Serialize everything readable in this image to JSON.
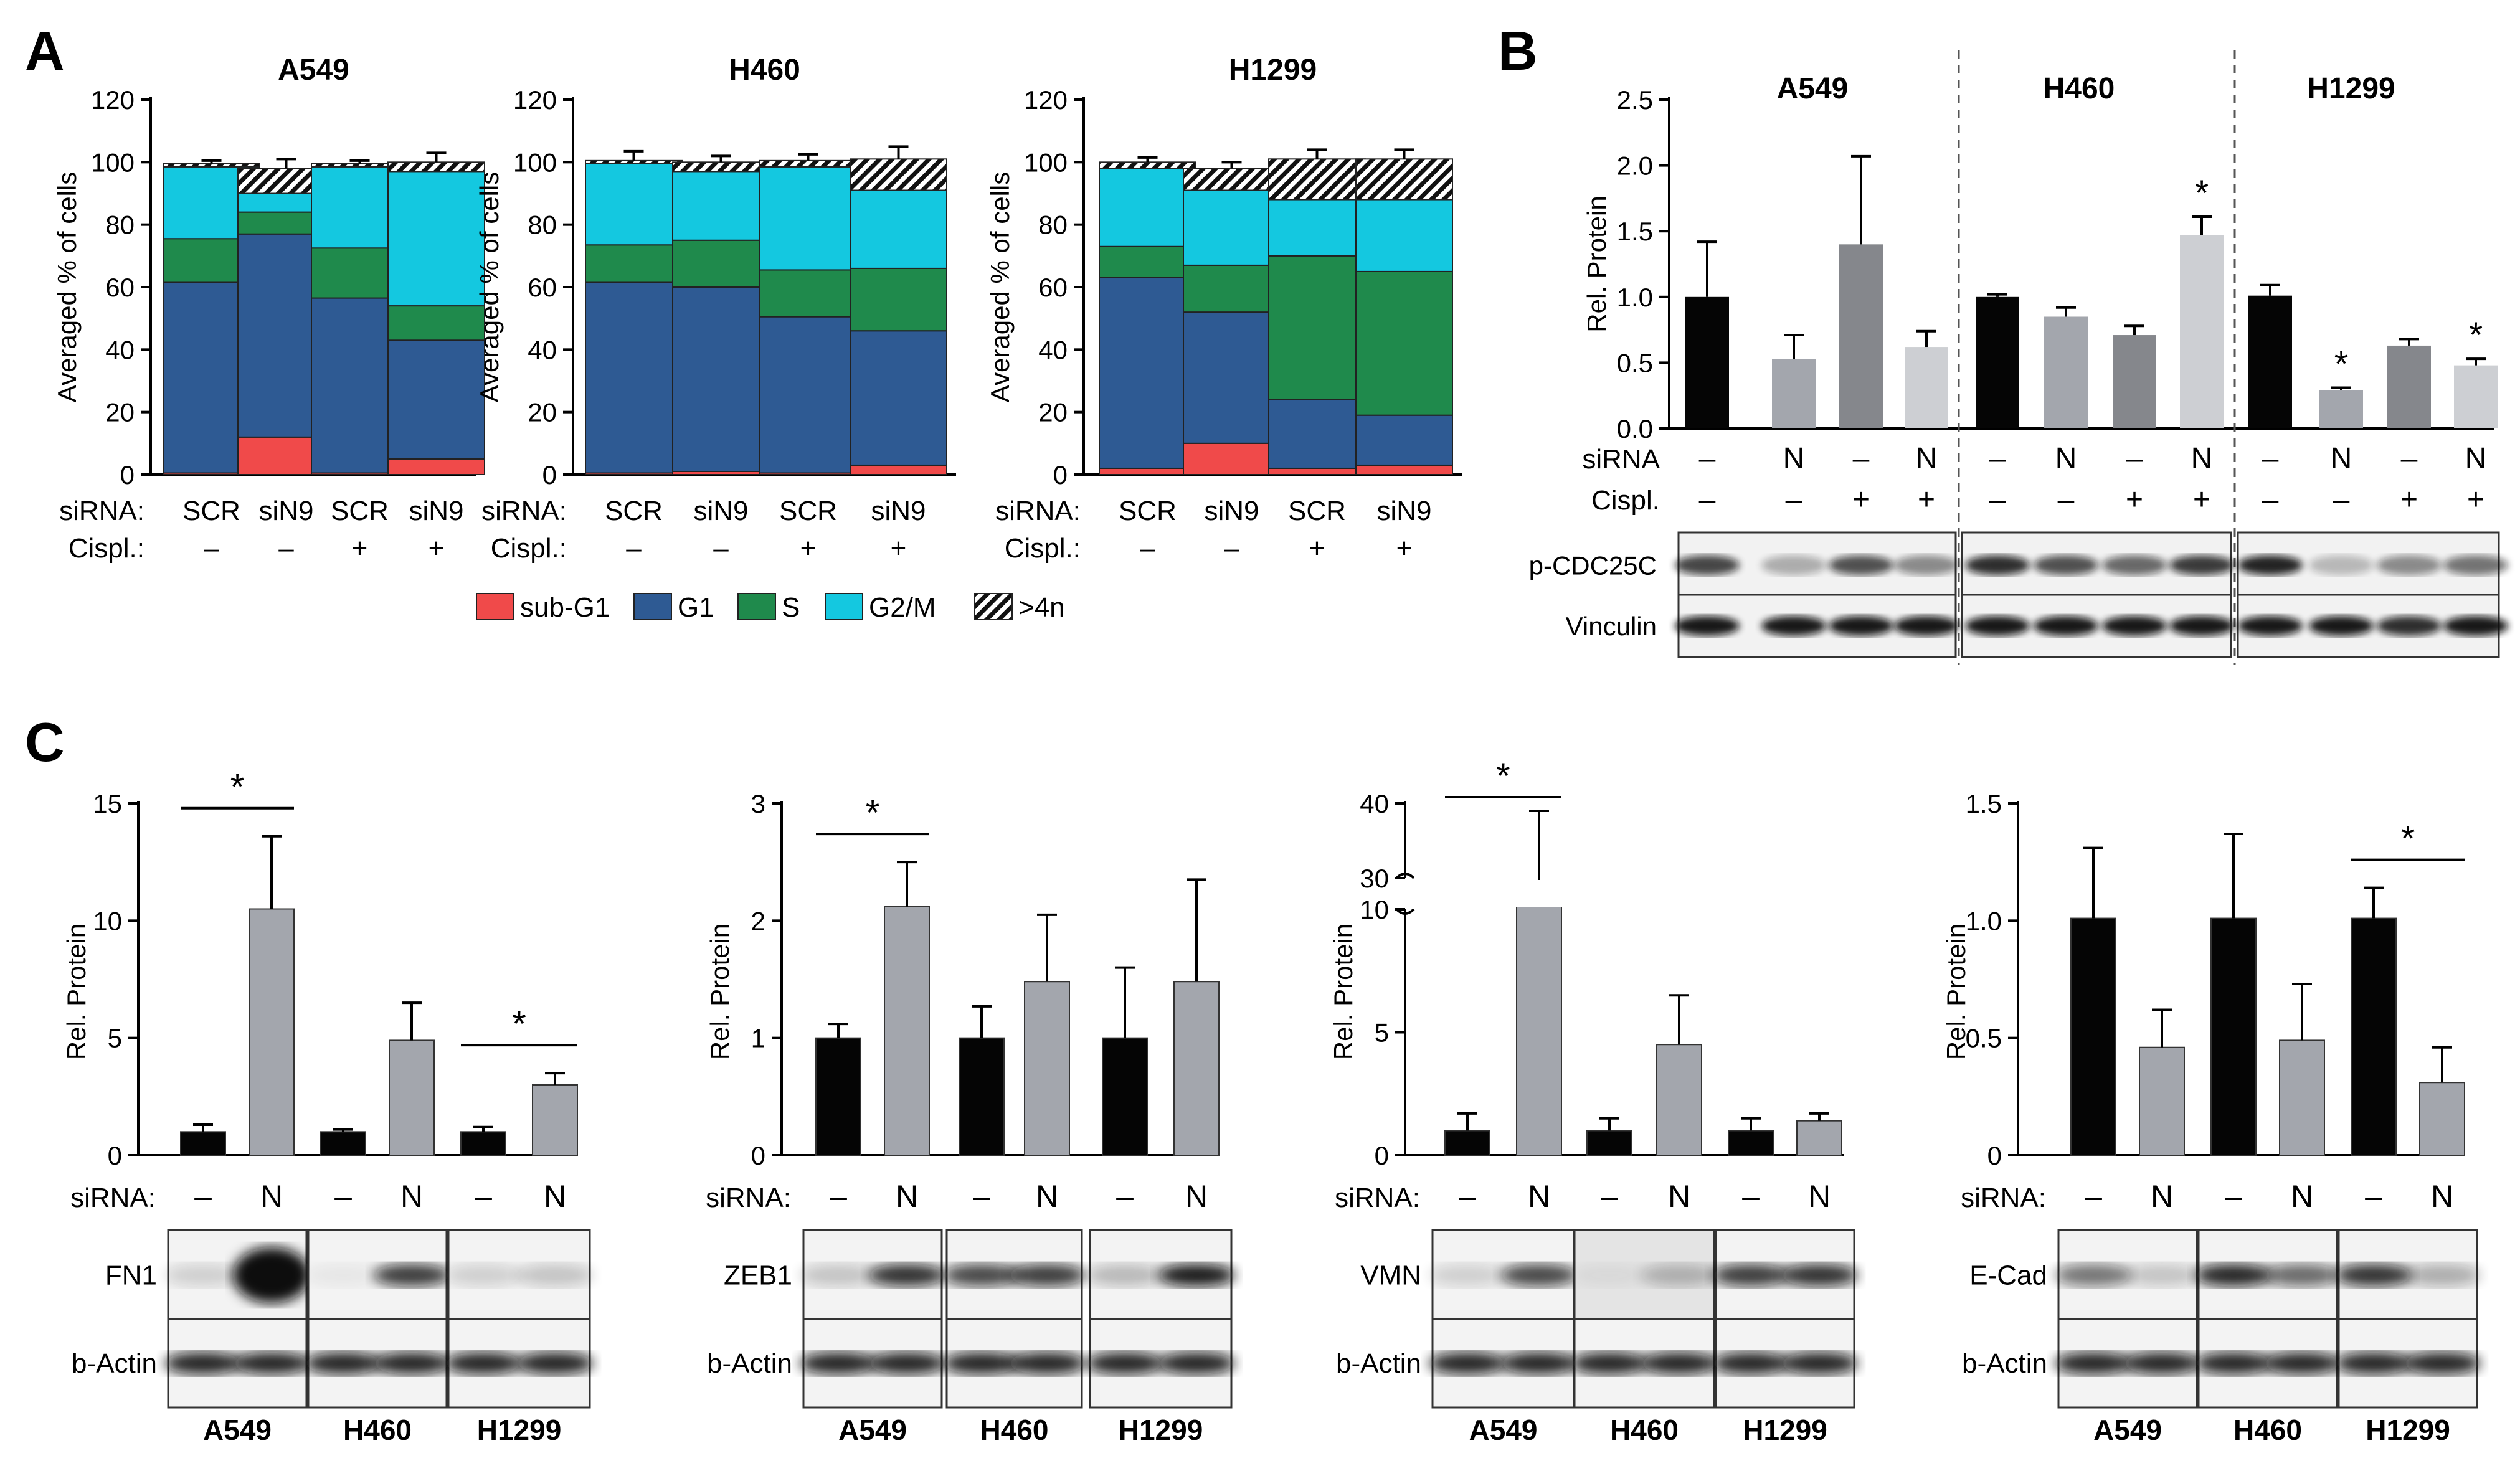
{
  "colors": {
    "sub_g1": "#f04a4a",
    "g1": "#2e5a93",
    "s": "#1f8a4c",
    "g2m": "#14c8e0",
    "black": "#050505",
    "grey1": "#a3a6ad",
    "grey2": "#85878c",
    "grey3": "#cdcfd3",
    "grey_bar": "#a3a6ad"
  },
  "panels": {
    "A": {
      "letter": "A"
    },
    "B": {
      "letter": "B"
    },
    "C": {
      "letter": "C"
    }
  },
  "chart_data": [
    {
      "id": "A1",
      "type": "bar",
      "stacked": true,
      "title": "A549",
      "ylabel": "Averaged % of cells",
      "ylim": [
        0,
        120
      ],
      "yticks": [
        "0",
        "20",
        "40",
        "60",
        "80",
        "100",
        "120"
      ],
      "categories": [
        "SCR",
        "siN9",
        "SCR",
        "siN9"
      ],
      "row_labels": {
        "sirna": "siRNA:",
        "cispl": "Cispl.:"
      },
      "cispl": [
        "–",
        "–",
        "+",
        "+"
      ],
      "series": [
        {
          "name": "sub-G1",
          "values": [
            0.5,
            12,
            0.5,
            5
          ]
        },
        {
          "name": "G1",
          "values": [
            61,
            65,
            56,
            38
          ]
        },
        {
          "name": "S",
          "values": [
            14,
            7,
            16,
            11
          ]
        },
        {
          "name": "G2/M",
          "values": [
            23,
            6,
            26,
            43
          ]
        },
        {
          "name": ">4n",
          "values": [
            1,
            8,
            1,
            3
          ]
        }
      ],
      "errors": [
        1,
        3,
        1,
        3
      ]
    },
    {
      "id": "A2",
      "type": "bar",
      "stacked": true,
      "title": "H460",
      "ylabel": "Averaged % of cells",
      "ylim": [
        0,
        120
      ],
      "yticks": [
        "0",
        "20",
        "40",
        "60",
        "80",
        "100",
        "120"
      ],
      "categories": [
        "SCR",
        "siN9",
        "SCR",
        "siN9"
      ],
      "row_labels": {
        "sirna": "siRNA:",
        "cispl": "Cispl.:"
      },
      "cispl": [
        "–",
        "–",
        "+",
        "+"
      ],
      "series": [
        {
          "name": "sub-G1",
          "values": [
            0.5,
            1,
            0.5,
            3
          ]
        },
        {
          "name": "G1",
          "values": [
            61,
            59,
            50,
            43
          ]
        },
        {
          "name": "S",
          "values": [
            12,
            15,
            15,
            20
          ]
        },
        {
          "name": "G2/M",
          "values": [
            26,
            22,
            33,
            25
          ]
        },
        {
          "name": ">4n",
          "values": [
            1,
            3,
            2,
            10
          ]
        }
      ],
      "errors": [
        3,
        2,
        2,
        4
      ]
    },
    {
      "id": "A3",
      "type": "bar",
      "stacked": true,
      "title": "H1299",
      "ylabel": "Averaged % of cells",
      "ylim": [
        0,
        120
      ],
      "yticks": [
        "0",
        "20",
        "40",
        "60",
        "80",
        "100",
        "120"
      ],
      "categories": [
        "SCR",
        "siN9",
        "SCR",
        "siN9"
      ],
      "row_labels": {
        "sirna": "siRNA:",
        "cispl": "Cispl.:"
      },
      "cispl": [
        "–",
        "–",
        "+",
        "+"
      ],
      "series": [
        {
          "name": "sub-G1",
          "values": [
            2,
            10,
            2,
            3
          ]
        },
        {
          "name": "G1",
          "values": [
            61,
            42,
            22,
            16
          ]
        },
        {
          "name": "S",
          "values": [
            10,
            15,
            46,
            46
          ]
        },
        {
          "name": "G2/M",
          "values": [
            25,
            24,
            18,
            23
          ]
        },
        {
          "name": ">4n",
          "values": [
            2,
            7,
            13,
            13
          ]
        }
      ],
      "errors": [
        1.5,
        2,
        3,
        3
      ]
    },
    {
      "id": "B",
      "type": "bar",
      "ylabel": "Rel. Protein",
      "ylim": [
        0,
        2.5
      ],
      "yticks": [
        "0.0",
        "0.5",
        "1.0",
        "1.5",
        "2.0",
        "2.5"
      ],
      "groups": [
        "A549",
        "H460",
        "H1299"
      ],
      "row_labels": {
        "sirna": "siRNA",
        "cispl": "Cispl."
      },
      "sirna": [
        "–",
        "N",
        "–",
        "N"
      ],
      "cispl": [
        "–",
        "–",
        "+",
        "+"
      ],
      "values": [
        [
          1.0,
          0.53,
          1.4,
          0.62
        ],
        [
          1.0,
          0.85,
          0.71,
          1.47
        ],
        [
          1.01,
          0.29,
          0.63,
          0.48
        ]
      ],
      "errors": [
        [
          0.42,
          0.18,
          0.67,
          0.12
        ],
        [
          0.02,
          0.07,
          0.07,
          0.14
        ],
        [
          0.08,
          0.02,
          0.05,
          0.05
        ]
      ],
      "stars": [
        "",
        "",
        "",
        "",
        "",
        "",
        "",
        "*",
        "",
        "*",
        "",
        "*"
      ],
      "blots": [
        "p-CDC25C",
        "Vinculin"
      ]
    },
    {
      "id": "C1",
      "type": "bar",
      "ylabel": "Rel. Protein",
      "ylim": [
        0,
        15
      ],
      "yticks": [
        "0",
        "5",
        "10",
        "15"
      ],
      "sirna_label": "siRNA:",
      "sirna": [
        "–",
        "N",
        "–",
        "N",
        "–",
        "N"
      ],
      "values": [
        1.0,
        10.5,
        1.0,
        4.9,
        1.0,
        3.0
      ],
      "errors": [
        0.3,
        3.1,
        0.1,
        1.6,
        0.2,
        0.5
      ],
      "stars": [
        "*",
        "",
        "*"
      ],
      "blots": [
        "FN1",
        "b-Actin"
      ],
      "groups": [
        "A549",
        "H460",
        "H1299"
      ]
    },
    {
      "id": "C2",
      "type": "bar",
      "ylabel": "Rel. Protein",
      "ylim": [
        0,
        3
      ],
      "yticks": [
        "0",
        "1",
        "2",
        "3"
      ],
      "sirna_label": "siRNA:",
      "sirna": [
        "–",
        "N",
        "–",
        "N",
        "–",
        "N"
      ],
      "values": [
        1.0,
        2.12,
        1.0,
        1.48,
        1.0,
        1.48
      ],
      "errors": [
        0.12,
        0.38,
        0.27,
        0.57,
        0.6,
        0.87
      ],
      "stars": [
        "*",
        "",
        ""
      ],
      "blots": [
        "ZEB1",
        "b-Actin"
      ],
      "groups": [
        "A549",
        "H460",
        "H1299"
      ]
    },
    {
      "id": "C3",
      "type": "bar",
      "ylabel": "Rel. Protein",
      "ylim": [
        0,
        40
      ],
      "axis_break": [
        10,
        30
      ],
      "yticks": [
        "0",
        "5",
        "10",
        "30",
        "40"
      ],
      "sirna_label": "siRNA:",
      "sirna": [
        "–",
        "N",
        "–",
        "N",
        "–",
        "N"
      ],
      "values": [
        1.0,
        28,
        1.0,
        4.5,
        1.0,
        1.4
      ],
      "errors": [
        0.7,
        11,
        0.5,
        2.0,
        0.5,
        0.3
      ],
      "stars": [
        "*",
        "",
        ""
      ],
      "blots": [
        "VMN",
        "b-Actin"
      ],
      "groups": [
        "A549",
        "H460",
        "H1299"
      ]
    },
    {
      "id": "C4",
      "type": "bar",
      "ylabel": "Rel. Protein",
      "ylim": [
        0,
        1.5
      ],
      "yticks": [
        "0",
        "0.5",
        "1.0",
        "1.5"
      ],
      "sirna_label": "siRNA:",
      "sirna": [
        "–",
        "N",
        "–",
        "N",
        "–",
        "N"
      ],
      "values": [
        1.01,
        0.46,
        1.01,
        0.49,
        1.01,
        0.31
      ],
      "errors": [
        0.3,
        0.16,
        0.36,
        0.24,
        0.13,
        0.15
      ],
      "stars": [
        "",
        "",
        "*"
      ],
      "blots": [
        "E-Cad",
        "b-Actin"
      ],
      "groups": [
        "A549",
        "H460",
        "H1299"
      ]
    }
  ],
  "legend": [
    "sub-G1",
    "G1",
    "S",
    "G2/M",
    ">4n"
  ]
}
